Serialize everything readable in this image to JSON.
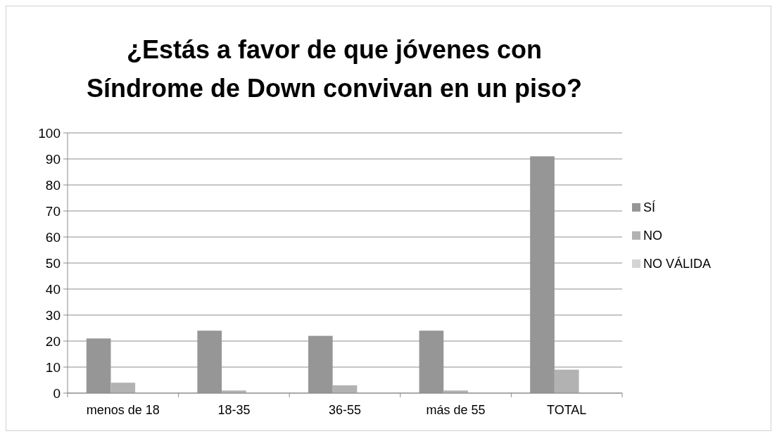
{
  "chart_data": {
    "type": "bar",
    "title": "¿Estás a favor de que jóvenes con Síndrome de Down convivan en un piso?",
    "categories": [
      "menos de 18",
      "18-35",
      "36-55",
      "más de 55",
      "TOTAL"
    ],
    "series": [
      {
        "name": "SÍ",
        "color": "#969696",
        "values": [
          21,
          24,
          22,
          24,
          91
        ]
      },
      {
        "name": "NO",
        "color": "#b2b2b2",
        "values": [
          4,
          1,
          3,
          1,
          9
        ]
      },
      {
        "name": "NO VÁLIDA",
        "color": "#d4d4d4",
        "values": [
          0,
          0,
          0,
          0,
          0
        ]
      }
    ],
    "ylim": [
      0,
      100
    ],
    "yticks": [
      0,
      10,
      20,
      30,
      40,
      50,
      60,
      70,
      80,
      90,
      100
    ],
    "grid": "y",
    "legend": "right"
  }
}
